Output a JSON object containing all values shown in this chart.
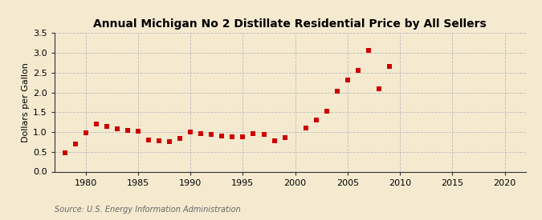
{
  "title": "Annual Michigan No 2 Distillate Residential Price by All Sellers",
  "ylabel": "Dollars per Gallon",
  "source": "Source: U.S. Energy Information Administration",
  "background_color": "#f5ead0",
  "plot_bg_color": "#f5ead0",
  "marker_color": "#cc0000",
  "grid_color": "#bbbbbb",
  "spine_color": "#333333",
  "xlim": [
    1977,
    2022
  ],
  "ylim": [
    0.0,
    3.5
  ],
  "xticks": [
    1980,
    1985,
    1990,
    1995,
    2000,
    2005,
    2010,
    2015,
    2020
  ],
  "yticks": [
    0.0,
    0.5,
    1.0,
    1.5,
    2.0,
    2.5,
    3.0,
    3.5
  ],
  "data": [
    [
      1978,
      0.47
    ],
    [
      1979,
      0.7
    ],
    [
      1980,
      0.98
    ],
    [
      1981,
      1.2
    ],
    [
      1982,
      1.15
    ],
    [
      1983,
      1.08
    ],
    [
      1984,
      1.05
    ],
    [
      1985,
      1.02
    ],
    [
      1986,
      0.8
    ],
    [
      1987,
      0.78
    ],
    [
      1988,
      0.76
    ],
    [
      1989,
      0.84
    ],
    [
      1990,
      1.0
    ],
    [
      1991,
      0.96
    ],
    [
      1992,
      0.94
    ],
    [
      1993,
      0.9
    ],
    [
      1994,
      0.87
    ],
    [
      1995,
      0.87
    ],
    [
      1996,
      0.96
    ],
    [
      1997,
      0.93
    ],
    [
      1998,
      0.78
    ],
    [
      1999,
      0.85
    ],
    [
      2001,
      1.1
    ],
    [
      2002,
      1.3
    ],
    [
      2003,
      1.52
    ],
    [
      2004,
      2.04
    ],
    [
      2005,
      2.32
    ],
    [
      2006,
      2.56
    ],
    [
      2007,
      3.07
    ],
    [
      2008,
      2.09
    ],
    [
      2009,
      2.65
    ]
  ],
  "title_fontsize": 10,
  "ylabel_fontsize": 8,
  "tick_fontsize": 8,
  "source_fontsize": 7,
  "marker_size": 4
}
